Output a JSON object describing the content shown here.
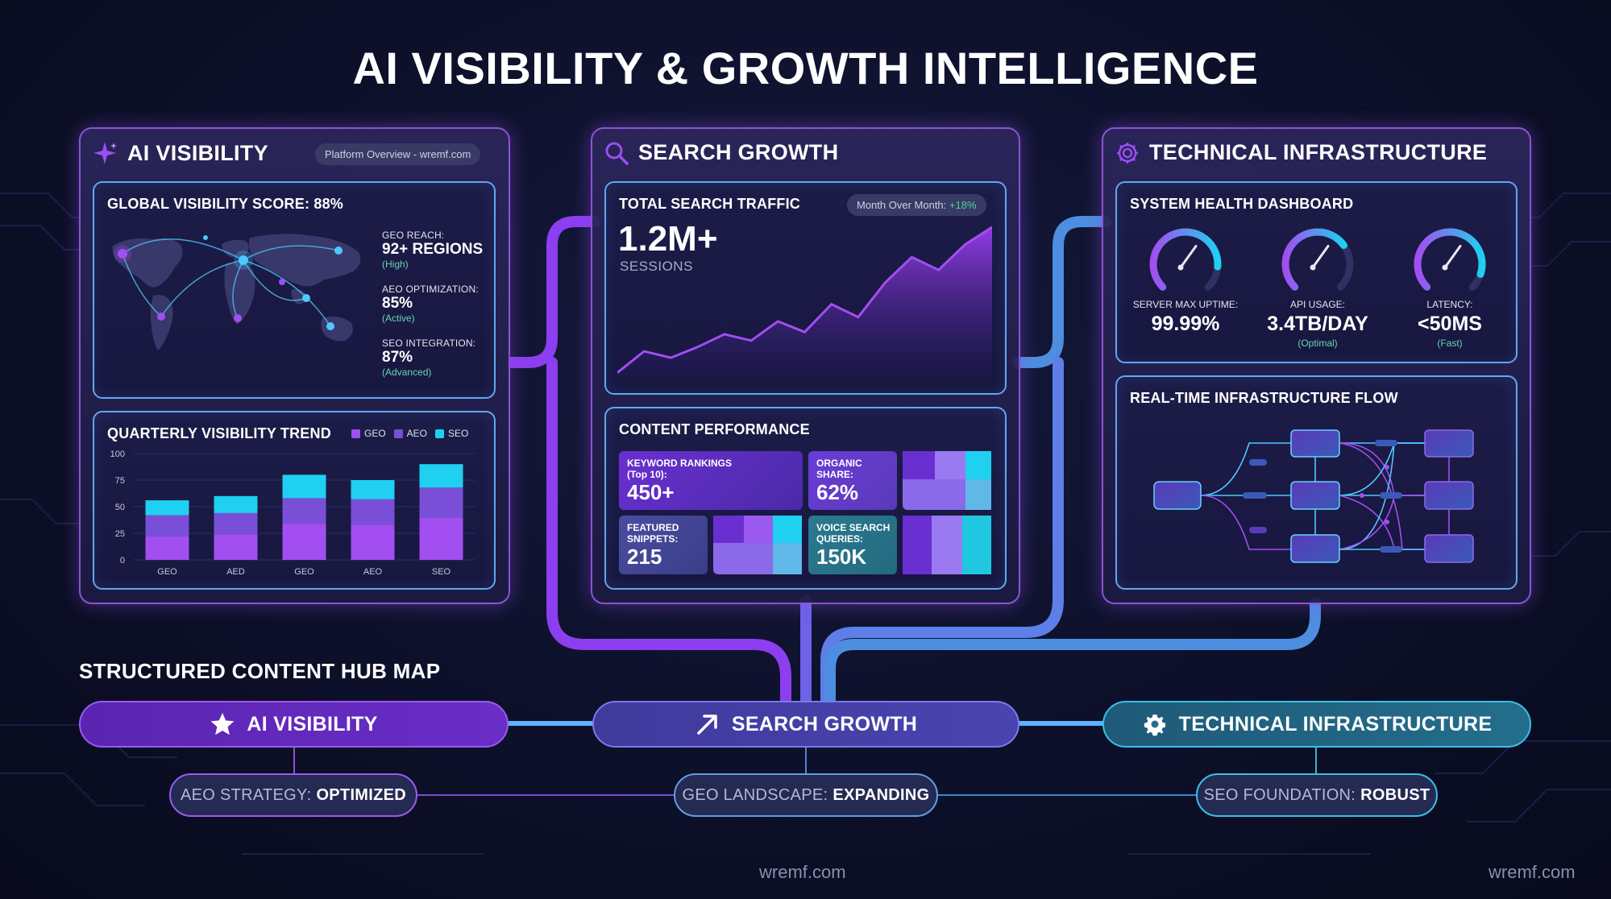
{
  "title": "AI VISIBILITY & GROWTH INTELLIGENCE",
  "colors": {
    "purple": "#8d52d6",
    "violet": "#a24ef0",
    "cyan": "#1fd0f0",
    "blue": "#4d8ee0",
    "teal": "#2a7a90",
    "positive": "#4cd88f"
  },
  "ai_visibility": {
    "icon": "sparkle-icon",
    "title": "AI VISIBILITY",
    "badge": "Platform Overview - wremf.com",
    "score_title": "GLOBAL VISIBILITY SCORE: 88%",
    "stats": [
      {
        "label": "GEO REACH:",
        "value": "92+ REGIONS",
        "note": "(High)"
      },
      {
        "label": "AEO OPTIMIZATION:",
        "value": "85%",
        "note": "(Active)"
      },
      {
        "label": "SEO INTEGRATION:",
        "value": "87%",
        "note": "(Advanced)"
      }
    ],
    "trend_title": "QUARTERLY VISIBILITY TREND",
    "legend": [
      "GEO",
      "AEO",
      "SEO"
    ],
    "chart_data": {
      "type": "bar",
      "stacked": true,
      "categories": [
        "GEO",
        "AED",
        "GEO",
        "AEO",
        "SEO"
      ],
      "series": [
        {
          "name": "GEO",
          "values": [
            22,
            24,
            34,
            33,
            40
          ]
        },
        {
          "name": "AEO",
          "values": [
            20,
            20,
            24,
            24,
            28
          ]
        },
        {
          "name": "SEO",
          "values": [
            14,
            16,
            22,
            18,
            22
          ]
        }
      ],
      "y_ticks": [
        0,
        25,
        50,
        75,
        100
      ],
      "ylim": [
        0,
        100
      ]
    }
  },
  "search_growth": {
    "icon": "magnifier-icon",
    "title": "SEARCH GROWTH",
    "traffic_title": "TOTAL SEARCH TRAFFIC",
    "mom_label": "Month Over Month:",
    "mom_value": "+18%",
    "traffic_value": "1.2M+",
    "traffic_unit": "SESSIONS",
    "traffic_chart": {
      "type": "area",
      "values": [
        2,
        12,
        9,
        14,
        20,
        17,
        26,
        21,
        34,
        28,
        44,
        56,
        50,
        62,
        70
      ]
    },
    "content_title": "CONTENT PERFORMANCE",
    "tiles": [
      {
        "label": "KEYWORD RANKINGS",
        "sublabel": "(Top 10):",
        "value": "450+"
      },
      {
        "label": "ORGANIC",
        "sublabel": "SHARE:",
        "value": "62%"
      },
      {
        "label": "FEATURED",
        "sublabel": "SNIPPETS:",
        "value": "215"
      },
      {
        "label": "VOICE SEARCH",
        "sublabel": "QUERIES:",
        "value": "150K"
      }
    ]
  },
  "technical": {
    "icon": "gear-icon",
    "title": "TECHNICAL INFRASTRUCTURE",
    "health_title": "SYSTEM HEALTH DASHBOARD",
    "gauges": [
      {
        "label": "SERVER MAX UPTIME:",
        "value": "99.99%",
        "note": "",
        "level": 0.85
      },
      {
        "label": "API USAGE:",
        "value": "3.4TB/DAY",
        "note": "(Optimal)",
        "level": 0.7
      },
      {
        "label": "LATENCY:",
        "value": "<50MS",
        "note": "(Fast)",
        "level": 0.9
      }
    ],
    "flow_title": "REAL-TIME INFRASTRUCTURE FLOW"
  },
  "hub": {
    "heading": "STRUCTURED CONTENT HUB MAP",
    "pills": [
      {
        "icon": "star-icon",
        "label": "AI VISIBILITY"
      },
      {
        "icon": "arrow-up-right-icon",
        "label": "SEARCH GROWTH"
      },
      {
        "icon": "gear-icon",
        "label": "TECHNICAL INFRASTRUCTURE"
      }
    ],
    "subs": [
      {
        "label": "AEO STRATEGY:",
        "value": "OPTIMIZED"
      },
      {
        "label": "GEO LANDSCAPE:",
        "value": "EXPANDING"
      },
      {
        "label": "SEO FOUNDATION:",
        "value": "ROBUST"
      }
    ]
  },
  "watermarks": [
    "wremf.com",
    "wremf.com"
  ]
}
